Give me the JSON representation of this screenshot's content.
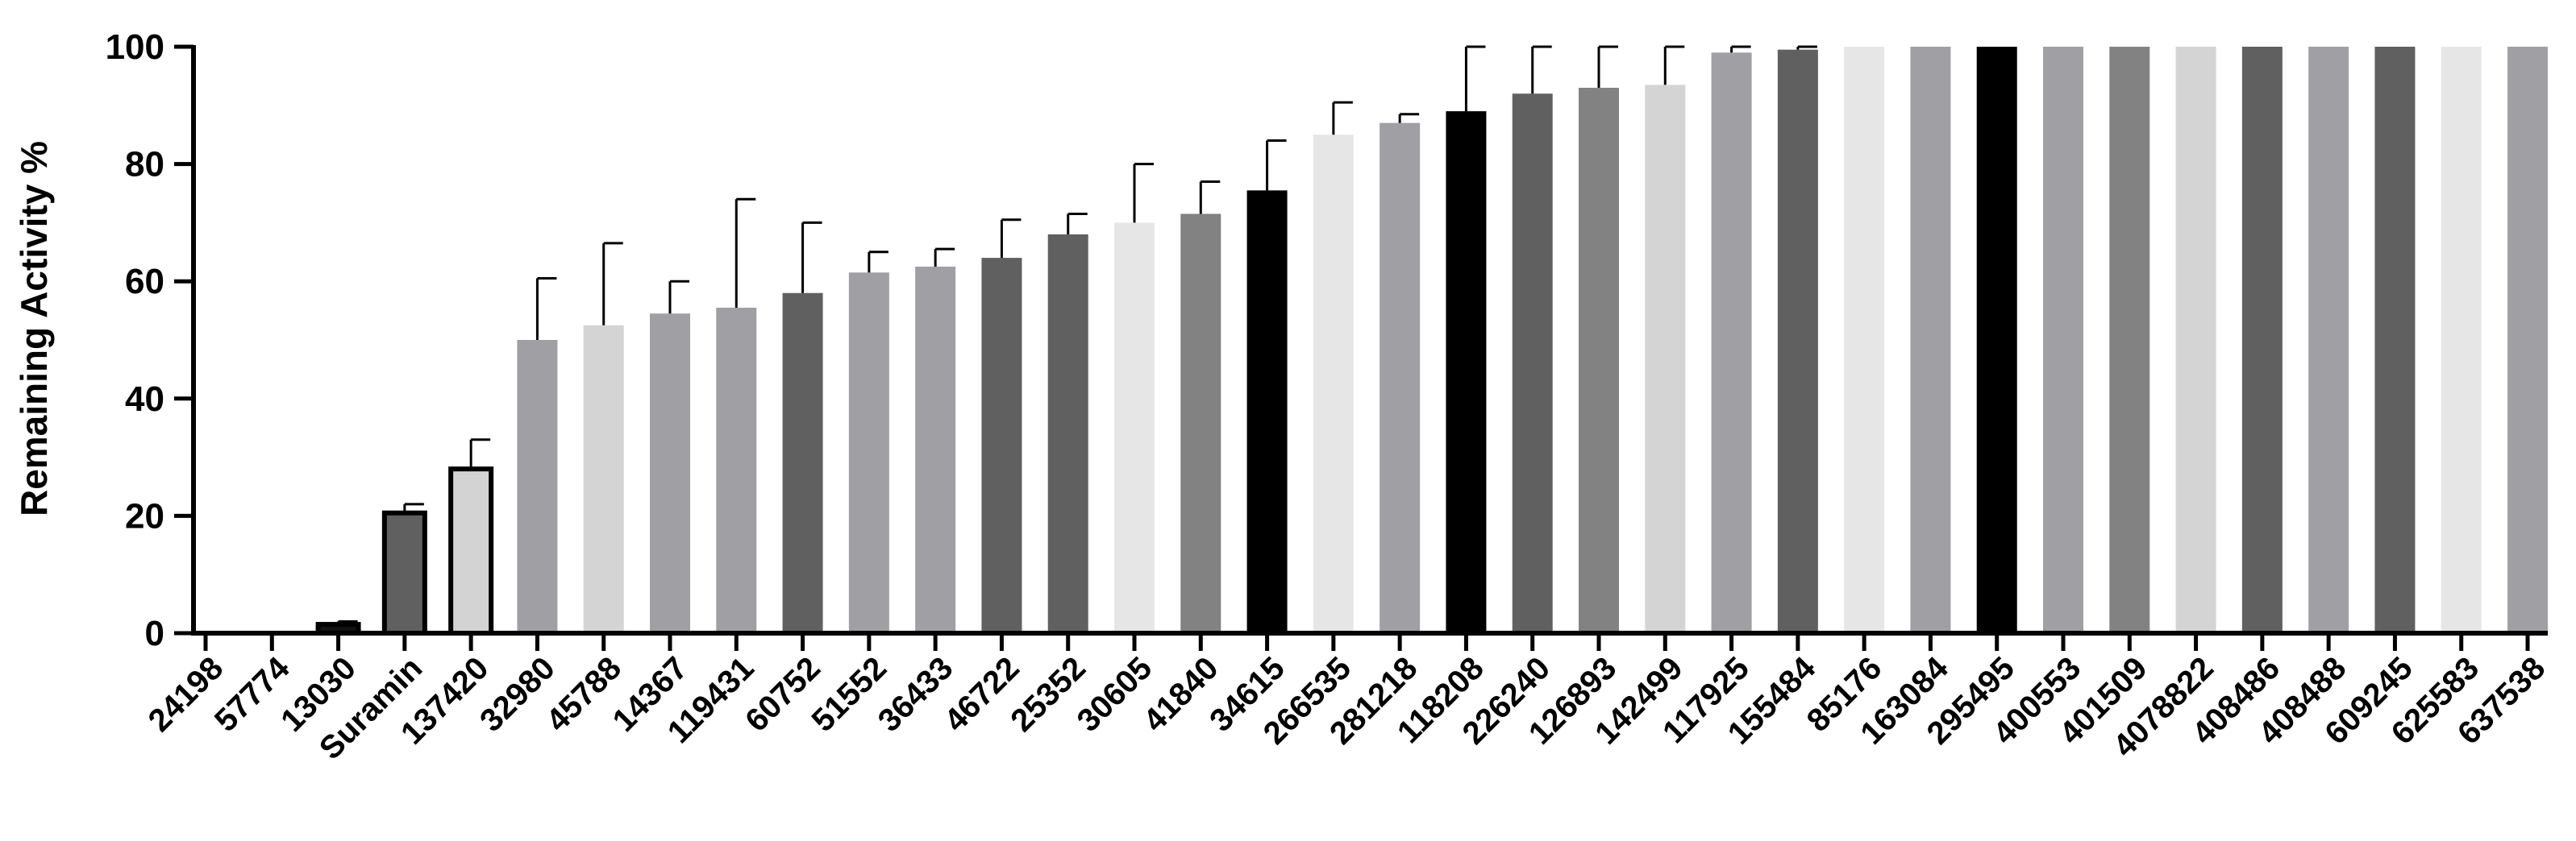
{
  "chart_data": {
    "type": "bar",
    "title": "",
    "xlabel": "",
    "ylabel": "Remaining Activity %",
    "ylim": [
      0,
      100
    ],
    "yticks": [
      0,
      20,
      40,
      60,
      80,
      100
    ],
    "grid": false,
    "legend": "none",
    "categories": [
      "24198",
      "57774",
      "13030",
      "Suramin",
      "137420",
      "32980",
      "45788",
      "14367",
      "119431",
      "60752",
      "51552",
      "36433",
      "46722",
      "25352",
      "30605",
      "41840",
      "34615",
      "266535",
      "281218",
      "118208",
      "226240",
      "126893",
      "142499",
      "117925",
      "155484",
      "85176",
      "163084",
      "295495",
      "400553",
      "401509",
      "4078822",
      "408486",
      "408488",
      "609245",
      "625583",
      "637538"
    ],
    "values": [
      0,
      0,
      1.5,
      20.5,
      28,
      50,
      52.5,
      54.5,
      55.5,
      58,
      61.5,
      62.5,
      64,
      68,
      70,
      71.5,
      75.5,
      85,
      87,
      89,
      92,
      93,
      93.5,
      99,
      99.5,
      100,
      100,
      100,
      100,
      100,
      100,
      100,
      100,
      100,
      100,
      100
    ],
    "errors": [
      0,
      0,
      0.5,
      1.5,
      5,
      10.5,
      14,
      5.5,
      18.5,
      12,
      3.5,
      3,
      6.5,
      3.5,
      10,
      5.5,
      8.5,
      5.5,
      1.5,
      14,
      11,
      9,
      7,
      1,
      0.5,
      0,
      0,
      0,
      0,
      0,
      0,
      0,
      0,
      0,
      0,
      0
    ],
    "colors": [
      "#000000",
      "#000000",
      "#111111",
      "#606060",
      "#d3d3d3",
      "#a0a0a4",
      "#d4d4d4",
      "#a0a0a4",
      "#a0a0a4",
      "#606060",
      "#a0a0a4",
      "#a0a0a4",
      "#606060",
      "#606060",
      "#e6e6e6",
      "#828282",
      "#000000",
      "#e6e6e6",
      "#a0a0a4",
      "#000000",
      "#606060",
      "#828282",
      "#d4d4d4",
      "#a0a0a4",
      "#606060",
      "#e6e6e6",
      "#a0a0a4",
      "#000000",
      "#a0a0a4",
      "#828282",
      "#d4d4d4",
      "#606060",
      "#a0a0a4",
      "#606060",
      "#e6e6e6",
      "#a0a0a4"
    ],
    "outlined": [
      false,
      false,
      true,
      true,
      true,
      false,
      false,
      false,
      false,
      false,
      false,
      false,
      false,
      false,
      false,
      false,
      false,
      false,
      false,
      false,
      false,
      false,
      false,
      false,
      false,
      false,
      false,
      false,
      false,
      false,
      false,
      false,
      false,
      false,
      false,
      false
    ]
  }
}
